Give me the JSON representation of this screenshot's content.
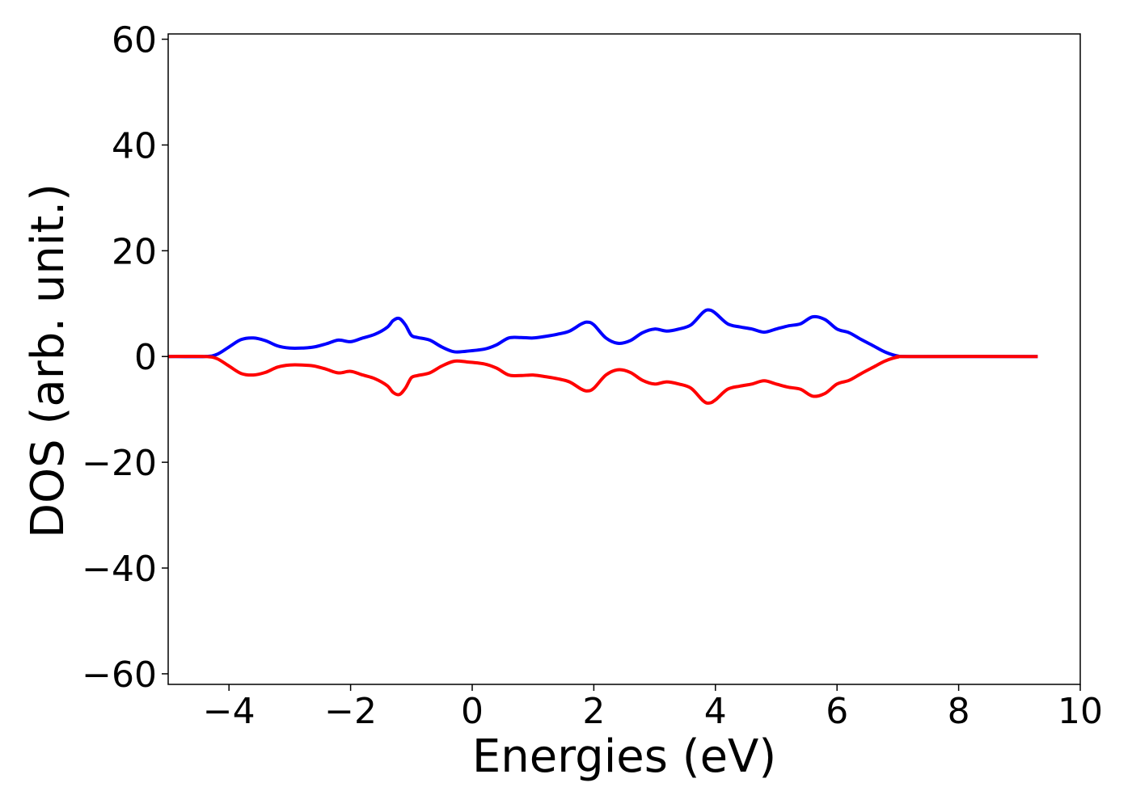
{
  "chart_data": {
    "type": "line",
    "title": "",
    "xlabel": "Energies (eV)",
    "ylabel": "DOS (arb. unit.)",
    "xlim": [
      -5,
      10
    ],
    "ylim": [
      -62,
      61
    ],
    "grid": false,
    "xticks": [
      -4,
      -2,
      0,
      2,
      4,
      6,
      8,
      10
    ],
    "xtick_labels": [
      "−4",
      "−2",
      "0",
      "2",
      "4",
      "6",
      "8",
      "10"
    ],
    "yticks": [
      60,
      40,
      20,
      0,
      -20,
      -40,
      -60
    ],
    "ytick_labels": [
      "60",
      "40",
      "20",
      "0",
      "−20",
      "−40",
      "−60"
    ],
    "series": [
      {
        "color": "#0000ff",
        "x": [
          -5,
          -4.4,
          -4.2,
          -4.0,
          -3.8,
          -3.6,
          -3.4,
          -3.2,
          -3.0,
          -2.8,
          -2.6,
          -2.4,
          -2.2,
          -2.0,
          -1.8,
          -1.6,
          -1.4,
          -1.3,
          -1.2,
          -1.1,
          -1.0,
          -0.9,
          -0.7,
          -0.5,
          -0.3,
          -0.1,
          0.2,
          0.4,
          0.6,
          0.8,
          1.0,
          1.2,
          1.4,
          1.6,
          1.8,
          1.9,
          2.0,
          2.2,
          2.4,
          2.6,
          2.8,
          3.0,
          3.2,
          3.4,
          3.6,
          3.8,
          3.9,
          4.0,
          4.2,
          4.4,
          4.6,
          4.8,
          5.0,
          5.2,
          5.4,
          5.6,
          5.8,
          6.0,
          6.2,
          6.4,
          6.6,
          6.8,
          7.0,
          7.2,
          9.3
        ],
        "y": [
          0,
          0,
          0.4,
          1.8,
          3.2,
          3.5,
          3.0,
          2.0,
          1.6,
          1.6,
          1.8,
          2.4,
          3.1,
          2.8,
          3.5,
          4.2,
          5.5,
          6.8,
          7.2,
          6.0,
          4.0,
          3.6,
          3.1,
          1.8,
          0.9,
          1.0,
          1.4,
          2.2,
          3.5,
          3.6,
          3.5,
          3.8,
          4.2,
          4.8,
          6.2,
          6.5,
          6.0,
          3.5,
          2.5,
          3.0,
          4.5,
          5.2,
          4.8,
          5.2,
          6.0,
          8.4,
          8.8,
          8.2,
          6.2,
          5.6,
          5.2,
          4.6,
          5.2,
          5.8,
          6.2,
          7.5,
          7.0,
          5.2,
          4.5,
          3.2,
          2.0,
          0.8,
          0.1,
          0,
          0
        ]
      },
      {
        "color": "#ff0000",
        "x": [
          -5,
          -4.4,
          -4.2,
          -4.0,
          -3.8,
          -3.6,
          -3.4,
          -3.2,
          -3.0,
          -2.8,
          -2.6,
          -2.4,
          -2.2,
          -2.0,
          -1.8,
          -1.6,
          -1.4,
          -1.3,
          -1.2,
          -1.1,
          -1.0,
          -0.9,
          -0.7,
          -0.5,
          -0.3,
          -0.1,
          0.2,
          0.4,
          0.6,
          0.8,
          1.0,
          1.2,
          1.4,
          1.6,
          1.8,
          1.9,
          2.0,
          2.2,
          2.4,
          2.6,
          2.8,
          3.0,
          3.2,
          3.4,
          3.6,
          3.8,
          3.9,
          4.0,
          4.2,
          4.4,
          4.6,
          4.8,
          5.0,
          5.2,
          5.4,
          5.6,
          5.8,
          6.0,
          6.2,
          6.4,
          6.6,
          6.8,
          7.0,
          7.2,
          9.3
        ],
        "y": [
          0,
          0,
          -0.4,
          -1.8,
          -3.2,
          -3.5,
          -3.0,
          -2.0,
          -1.6,
          -1.6,
          -1.8,
          -2.4,
          -3.1,
          -2.8,
          -3.5,
          -4.2,
          -5.5,
          -6.8,
          -7.2,
          -6.0,
          -4.0,
          -3.6,
          -3.1,
          -1.8,
          -0.9,
          -1.0,
          -1.4,
          -2.2,
          -3.5,
          -3.6,
          -3.5,
          -3.8,
          -4.2,
          -4.8,
          -6.2,
          -6.5,
          -6.0,
          -3.5,
          -2.5,
          -3.0,
          -4.5,
          -5.2,
          -4.8,
          -5.2,
          -6.0,
          -8.4,
          -8.8,
          -8.2,
          -6.2,
          -5.6,
          -5.2,
          -4.6,
          -5.2,
          -5.8,
          -6.2,
          -7.5,
          -7.0,
          -5.2,
          -4.5,
          -3.2,
          -2.0,
          -0.8,
          -0.1,
          0,
          0
        ]
      }
    ]
  }
}
